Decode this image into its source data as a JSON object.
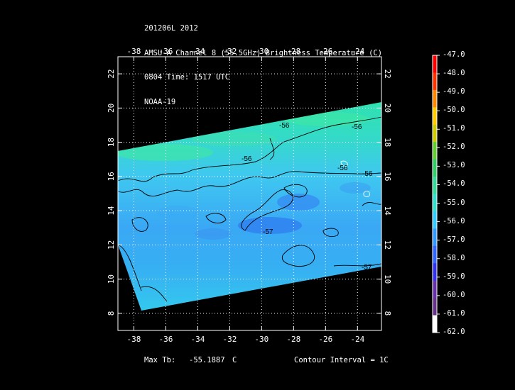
{
  "header": {
    "lines": [
      "201206L 2012",
      "AMSU-A Channel 8 (55.5GHz) Brightness Temperature (C)",
      "0804 Time: 1517 UTC",
      "NOAA-19"
    ]
  },
  "map": {
    "x_ticks": [
      "-38",
      "-36",
      "-34",
      "-32",
      "-30",
      "-28",
      "-26",
      "-24"
    ],
    "y_ticks": [
      "8",
      "10",
      "12",
      "14",
      "16",
      "18",
      "20",
      "22"
    ],
    "x_range": [
      -39,
      -22.5
    ],
    "y_range": [
      7,
      23
    ],
    "grid": true,
    "contour_labels": [
      "-56",
      "-56",
      "-56",
      "-56",
      "-56",
      "-57",
      "-57"
    ]
  },
  "colorbar": {
    "labels": [
      "-47.0",
      "-48.0",
      "-49.0",
      "-50.0",
      "-51.0",
      "-52.0",
      "-53.0",
      "-54.0",
      "-55.0",
      "-56.0",
      "-57.0",
      "-58.0",
      "-59.0",
      "-60.0",
      "-61.0",
      "-62.0"
    ],
    "colors": [
      "#ff0000",
      "#ff3300",
      "#ff8800",
      "#ffcc00",
      "#cccc00",
      "#66cc33",
      "#33cc66",
      "#33dd99",
      "#33e0cc",
      "#33ccff",
      "#3399ff",
      "#3366ff",
      "#3333ee",
      "#6633aa",
      "#663388",
      "#ffffff"
    ]
  },
  "footer": {
    "max_tb_label": "Max Tb:",
    "max_tb_value": "-55.1887",
    "max_tb_unit": "C",
    "contour_interval": "Contour Interval = 1C"
  }
}
